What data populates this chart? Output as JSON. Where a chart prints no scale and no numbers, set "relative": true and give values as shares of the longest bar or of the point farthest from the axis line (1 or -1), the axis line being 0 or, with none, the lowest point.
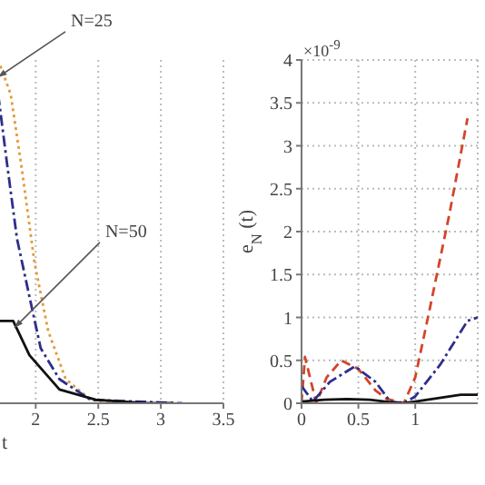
{
  "chart_data": [
    {
      "type": "line",
      "relative": true,
      "xlabel": "t",
      "xlim": [
        1.7,
        3.5
      ],
      "xticks": [
        2,
        2.5,
        3,
        3.5
      ],
      "grid": true,
      "annotations": [
        {
          "text": "N=25",
          "x": 1.7,
          "y": 0.95
        },
        {
          "text": "N=50",
          "x": 1.83,
          "y": 0.22
        }
      ],
      "series": [
        {
          "color": "#e39a3c",
          "line_style": "dotted",
          "x": [
            1.7,
            1.8,
            1.89,
            1.99,
            2.1,
            2.24,
            2.44,
            2.68,
            3.1
          ],
          "values": [
            1,
            0.9,
            0.68,
            0.41,
            0.21,
            0.07,
            0.01,
            0,
            0
          ]
        },
        {
          "color": "#2e2e8c",
          "line_style": "dashdot",
          "x": [
            1.7,
            1.77,
            1.85,
            1.95,
            2.04,
            2.19,
            2.44,
            3.17
          ],
          "values": [
            0.9,
            0.7,
            0.48,
            0.31,
            0.16,
            0.07,
            0.01,
            0
          ]
        },
        {
          "color": "#111111",
          "line_style": "solid",
          "x": [
            1.7,
            1.82,
            1.95,
            2.19,
            2.48,
            2.88,
            3.1
          ],
          "values": [
            0.24,
            0.24,
            0.14,
            0.04,
            0.01,
            0,
            0
          ]
        }
      ]
    },
    {
      "type": "line",
      "ylabel": "e$_{N}$ (t)",
      "xlim": [
        0,
        1.55
      ],
      "xticks": [
        0,
        0.5,
        1
      ],
      "ylim": [
        0,
        4
      ],
      "yticks": [
        0,
        0.5,
        1,
        1.5,
        2,
        2.5,
        3,
        3.5,
        4
      ],
      "grid": true,
      "annotations": [
        "×10$^{-9}$"
      ],
      "series": [
        {
          "color": "#d2452a",
          "line_style": "dashed",
          "x": [
            0,
            0.03,
            0.13,
            0.22,
            0.35,
            0.5,
            0.65,
            0.75,
            0.9,
            1.0,
            1.12,
            1.3,
            1.46
          ],
          "values": [
            0,
            0.54,
            0,
            0.3,
            0.5,
            0.4,
            0.15,
            0.05,
            0,
            0.3,
            1.05,
            2.2,
            3.32
          ]
        },
        {
          "color": "#2e2e8c",
          "line_style": "dashdot",
          "x": [
            0,
            0.1,
            0.25,
            0.47,
            0.65,
            0.78,
            0.9,
            1.0,
            1.22,
            1.46,
            1.55
          ],
          "values": [
            0.2,
            0.02,
            0.25,
            0.43,
            0.25,
            0.02,
            0,
            0.08,
            0.45,
            0.96,
            1.0
          ]
        },
        {
          "color": "#111111",
          "line_style": "solid",
          "x": [
            0,
            0.2,
            0.4,
            0.6,
            0.8,
            0.9,
            1.0,
            1.2,
            1.4,
            1.55
          ],
          "values": [
            0.02,
            0.04,
            0.05,
            0.04,
            0.01,
            0,
            0.02,
            0.06,
            0.1,
            0.1
          ]
        }
      ]
    }
  ]
}
